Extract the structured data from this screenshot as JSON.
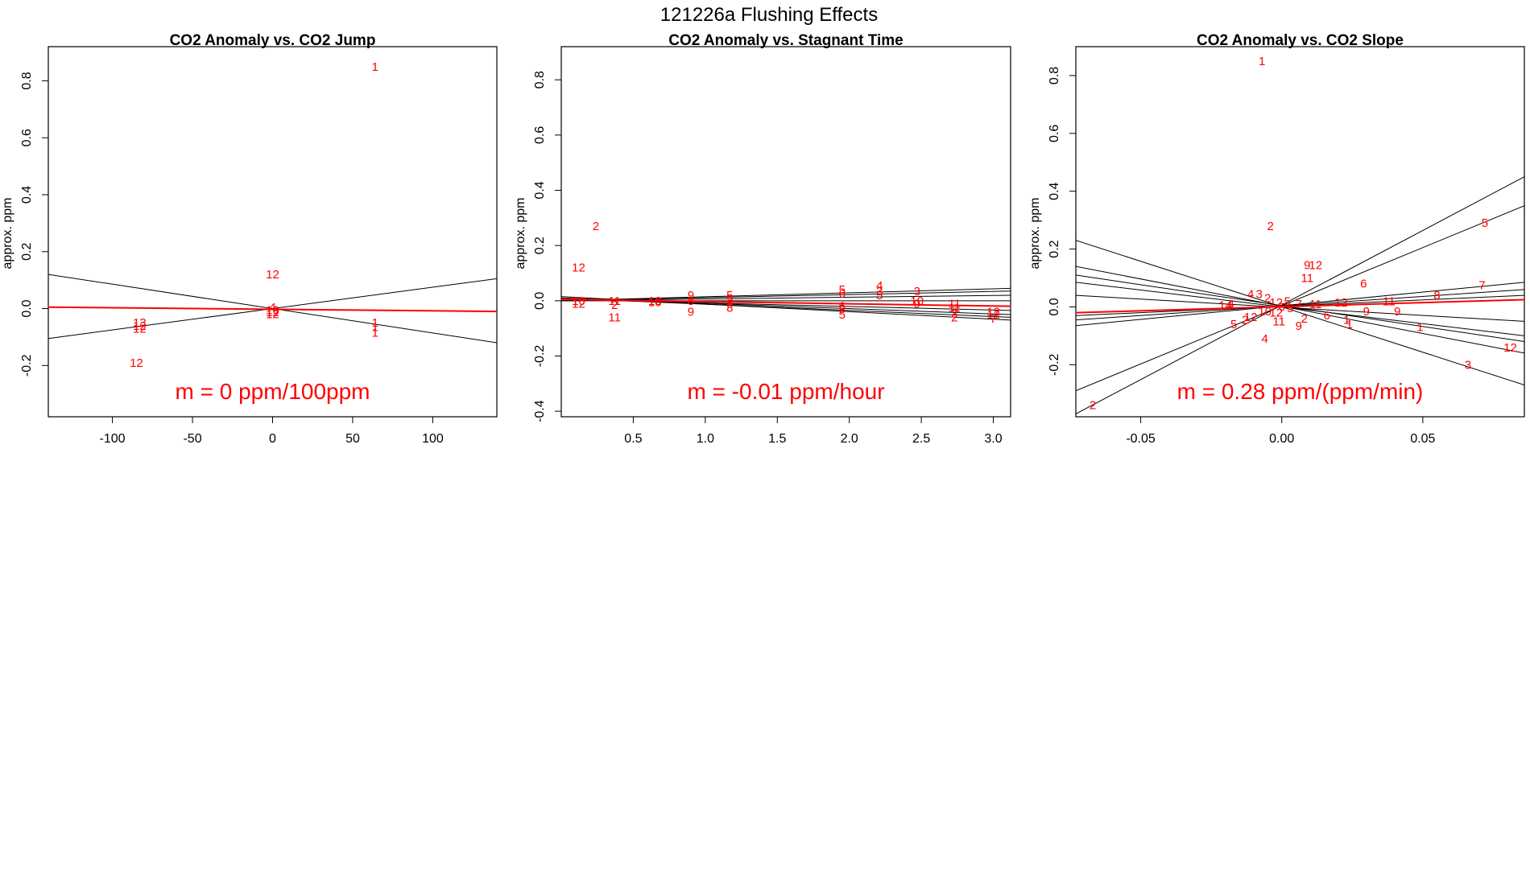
{
  "figure_title": "121226a   Flushing Effects",
  "colors": {
    "points": "#ff0000",
    "overall_fit": "#ff0000",
    "fits": "#000000",
    "axes": "#000000"
  },
  "chart_data": [
    {
      "type": "scatter",
      "title": "CO2 Anomaly vs. CO2 Jump",
      "xlabel": "",
      "ylabel": "approx. ppm",
      "xlim": [
        -140,
        140
      ],
      "ylim": [
        -0.38,
        0.92
      ],
      "xticks": [
        -100,
        -50,
        0,
        50,
        100
      ],
      "yticks": [
        -0.2,
        0.0,
        0.2,
        0.4,
        0.6,
        0.8
      ],
      "slope_label": "m = 0 ppm/100ppm",
      "points": [
        {
          "x": 64,
          "y": 0.85,
          "label": "1"
        },
        {
          "x": 0,
          "y": 0.12,
          "label": "12"
        },
        {
          "x": -83,
          "y": -0.05,
          "label": "13"
        },
        {
          "x": -83,
          "y": -0.06,
          "label": "12"
        },
        {
          "x": -83,
          "y": -0.07,
          "label": "12"
        },
        {
          "x": -85,
          "y": -0.19,
          "label": "12"
        },
        {
          "x": 0,
          "y": 0.005,
          "label": "4"
        },
        {
          "x": 0,
          "y": -0.005,
          "label": "10"
        },
        {
          "x": 0,
          "y": -0.012,
          "label": "12"
        },
        {
          "x": 0,
          "y": -0.02,
          "label": "12"
        },
        {
          "x": 64,
          "y": -0.05,
          "label": "1"
        },
        {
          "x": 64,
          "y": -0.065,
          "label": "1"
        },
        {
          "x": 64,
          "y": -0.085,
          "label": "1"
        }
      ],
      "fit_lines": [
        {
          "x": [
            -140,
            140
          ],
          "y": [
            0.12,
            -0.12
          ]
        },
        {
          "x": [
            -140,
            140
          ],
          "y": [
            -0.105,
            0.105
          ]
        }
      ],
      "overall_fit": {
        "x": [
          -140,
          140
        ],
        "y": [
          0.005,
          -0.01
        ]
      }
    },
    {
      "type": "scatter",
      "title": "CO2 Anomaly vs. Stagnant Time",
      "xlabel": "",
      "ylabel": "approx. ppm",
      "xlim": [
        0.0,
        3.12
      ],
      "ylim": [
        -0.42,
        0.92
      ],
      "xticks": [
        0.5,
        1.0,
        1.5,
        2.0,
        2.5,
        3.0
      ],
      "yticks": [
        -0.4,
        -0.2,
        0.0,
        0.2,
        0.4,
        0.6,
        0.8
      ],
      "slope_label": "m = -0.01 ppm/hour",
      "points": [
        {
          "x": 0.24,
          "y": 0.27,
          "label": "2"
        },
        {
          "x": 0.12,
          "y": 0.12,
          "label": "12"
        },
        {
          "x": 0.12,
          "y": 0.0,
          "label": "10"
        },
        {
          "x": 0.12,
          "y": -0.01,
          "label": "12"
        },
        {
          "x": 0.37,
          "y": 0.0,
          "label": "11"
        },
        {
          "x": 0.37,
          "y": -0.015,
          "label": "2"
        },
        {
          "x": 0.37,
          "y": -0.06,
          "label": "11"
        },
        {
          "x": 0.65,
          "y": 0.0,
          "label": "10"
        },
        {
          "x": 0.65,
          "y": -0.005,
          "label": "10"
        },
        {
          "x": 0.9,
          "y": 0.02,
          "label": "9"
        },
        {
          "x": 0.9,
          "y": 0.0,
          "label": "8"
        },
        {
          "x": 0.9,
          "y": -0.04,
          "label": "9"
        },
        {
          "x": 1.17,
          "y": 0.02,
          "label": "5"
        },
        {
          "x": 1.17,
          "y": 0.005,
          "label": "5"
        },
        {
          "x": 1.17,
          "y": -0.01,
          "label": "8"
        },
        {
          "x": 1.17,
          "y": -0.025,
          "label": "8"
        },
        {
          "x": 1.95,
          "y": 0.04,
          "label": "5"
        },
        {
          "x": 1.95,
          "y": 0.025,
          "label": "6"
        },
        {
          "x": 1.95,
          "y": -0.02,
          "label": "6"
        },
        {
          "x": 1.95,
          "y": -0.03,
          "label": "8"
        },
        {
          "x": 1.95,
          "y": -0.05,
          "label": "5"
        },
        {
          "x": 2.21,
          "y": 0.055,
          "label": "4"
        },
        {
          "x": 2.21,
          "y": 0.035,
          "label": "3"
        },
        {
          "x": 2.21,
          "y": 0.02,
          "label": "5"
        },
        {
          "x": 2.47,
          "y": 0.035,
          "label": "3"
        },
        {
          "x": 2.47,
          "y": 0.0,
          "label": "10"
        },
        {
          "x": 2.47,
          "y": -0.01,
          "label": "9"
        },
        {
          "x": 2.73,
          "y": -0.01,
          "label": "11"
        },
        {
          "x": 2.73,
          "y": -0.025,
          "label": "11"
        },
        {
          "x": 2.73,
          "y": -0.045,
          "label": "2"
        },
        {
          "x": 2.73,
          "y": -0.06,
          "label": "2"
        },
        {
          "x": 3.0,
          "y": -0.04,
          "label": "12"
        },
        {
          "x": 3.0,
          "y": -0.05,
          "label": "12"
        },
        {
          "x": 3.0,
          "y": -0.065,
          "label": "7"
        }
      ],
      "fit_lines": [
        {
          "x": [
            0.0,
            3.12
          ],
          "y": [
            0.0,
            0.045
          ]
        },
        {
          "x": [
            0.0,
            3.12
          ],
          "y": [
            0.0,
            0.035
          ]
        },
        {
          "x": [
            0.0,
            3.12
          ],
          "y": [
            0.0,
            0.02
          ]
        },
        {
          "x": [
            0.0,
            3.12
          ],
          "y": [
            0.0,
            0.0
          ]
        },
        {
          "x": [
            0.0,
            3.12
          ],
          "y": [
            0.005,
            -0.02
          ]
        },
        {
          "x": [
            0.0,
            3.12
          ],
          "y": [
            0.005,
            -0.035
          ]
        },
        {
          "x": [
            0.0,
            3.12
          ],
          "y": [
            0.01,
            -0.05
          ]
        },
        {
          "x": [
            0.0,
            3.12
          ],
          "y": [
            0.01,
            -0.06
          ]
        },
        {
          "x": [
            0.0,
            3.12
          ],
          "y": [
            0.015,
            -0.07
          ]
        }
      ],
      "overall_fit": {
        "x": [
          0.0,
          3.12
        ],
        "y": [
          0.005,
          -0.02
        ]
      }
    },
    {
      "type": "scatter",
      "title": "CO2 Anomaly vs. CO2 Slope",
      "xlabel": "",
      "ylabel": "approx. ppm",
      "xlim": [
        -0.073,
        0.086
      ],
      "ylim": [
        -0.38,
        0.9
      ],
      "xticks": [
        -0.05,
        0.0,
        0.05
      ],
      "yticks": [
        -0.2,
        0.0,
        0.2,
        0.4,
        0.6,
        0.8
      ],
      "slope_label": "m = 0.28 ppm/(ppm/min)",
      "points": [
        {
          "x": -0.007,
          "y": 0.85,
          "label": "1"
        },
        {
          "x": -0.004,
          "y": 0.28,
          "label": "2"
        },
        {
          "x": 0.009,
          "y": 0.145,
          "label": "9"
        },
        {
          "x": 0.012,
          "y": 0.145,
          "label": "12"
        },
        {
          "x": 0.009,
          "y": 0.1,
          "label": "11"
        },
        {
          "x": 0.029,
          "y": 0.08,
          "label": "6"
        },
        {
          "x": 0.072,
          "y": 0.29,
          "label": "5"
        },
        {
          "x": 0.071,
          "y": 0.075,
          "label": "7"
        },
        {
          "x": 0.055,
          "y": 0.04,
          "label": "8"
        },
        {
          "x": 0.038,
          "y": 0.02,
          "label": "11"
        },
        {
          "x": 0.021,
          "y": 0.015,
          "label": "12"
        },
        {
          "x": 0.012,
          "y": 0.01,
          "label": "11"
        },
        {
          "x": 0.03,
          "y": -0.015,
          "label": "9"
        },
        {
          "x": 0.041,
          "y": -0.015,
          "label": "9"
        },
        {
          "x": 0.016,
          "y": -0.03,
          "label": "6"
        },
        {
          "x": 0.023,
          "y": -0.045,
          "label": "1"
        },
        {
          "x": 0.024,
          "y": -0.06,
          "label": "1"
        },
        {
          "x": 0.049,
          "y": -0.07,
          "label": "1"
        },
        {
          "x": 0.081,
          "y": -0.14,
          "label": "12"
        },
        {
          "x": 0.066,
          "y": -0.2,
          "label": "3"
        },
        {
          "x": -0.011,
          "y": 0.045,
          "label": "4"
        },
        {
          "x": -0.008,
          "y": 0.045,
          "label": "3"
        },
        {
          "x": -0.005,
          "y": 0.03,
          "label": "2"
        },
        {
          "x": -0.002,
          "y": 0.015,
          "label": "12"
        },
        {
          "x": -0.02,
          "y": 0.005,
          "label": "14"
        },
        {
          "x": -0.018,
          "y": 0.01,
          "label": "4"
        },
        {
          "x": 0.002,
          "y": 0.02,
          "label": "5"
        },
        {
          "x": 0.006,
          "y": 0.01,
          "label": "7"
        },
        {
          "x": 0.0,
          "y": 0.0,
          "label": "6"
        },
        {
          "x": -0.006,
          "y": -0.015,
          "label": "10"
        },
        {
          "x": -0.002,
          "y": -0.02,
          "label": "12"
        },
        {
          "x": -0.011,
          "y": -0.035,
          "label": "12"
        },
        {
          "x": -0.013,
          "y": -0.045,
          "label": "2"
        },
        {
          "x": -0.017,
          "y": -0.06,
          "label": "5"
        },
        {
          "x": -0.006,
          "y": -0.11,
          "label": "4"
        },
        {
          "x": -0.001,
          "y": -0.05,
          "label": "11"
        },
        {
          "x": 0.006,
          "y": -0.065,
          "label": "9"
        },
        {
          "x": 0.008,
          "y": -0.04,
          "label": "2"
        },
        {
          "x": 0.003,
          "y": -0.005,
          "label": "5"
        },
        {
          "x": -0.067,
          "y": -0.34,
          "label": "2"
        }
      ],
      "fit_lines": [
        {
          "x": [
            -0.073,
            0.086
          ],
          "y": [
            -0.37,
            0.45
          ]
        },
        {
          "x": [
            -0.073,
            0.086
          ],
          "y": [
            -0.29,
            0.35
          ]
        },
        {
          "x": [
            -0.073,
            0.086
          ],
          "y": [
            -0.065,
            0.085
          ]
        },
        {
          "x": [
            -0.073,
            0.086
          ],
          "y": [
            -0.045,
            0.06
          ]
        },
        {
          "x": [
            -0.073,
            0.086
          ],
          "y": [
            -0.03,
            0.04
          ]
        },
        {
          "x": [
            -0.073,
            0.086
          ],
          "y": [
            0.23,
            -0.27
          ]
        },
        {
          "x": [
            -0.073,
            0.086
          ],
          "y": [
            0.14,
            -0.16
          ]
        },
        {
          "x": [
            -0.073,
            0.086
          ],
          "y": [
            0.11,
            -0.12
          ]
        },
        {
          "x": [
            -0.073,
            0.086
          ],
          "y": [
            0.085,
            -0.1
          ]
        },
        {
          "x": [
            -0.073,
            0.086
          ],
          "y": [
            0.04,
            -0.05
          ]
        }
      ],
      "overall_fit": {
        "x": [
          -0.073,
          0.086
        ],
        "y": [
          -0.02,
          0.025
        ]
      }
    }
  ]
}
